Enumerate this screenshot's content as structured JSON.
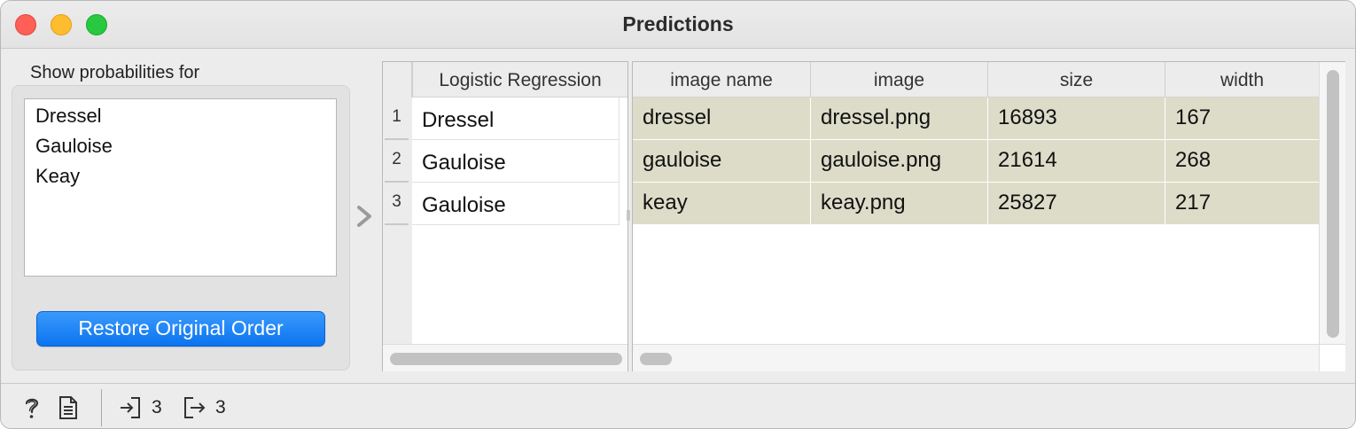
{
  "window": {
    "title": "Predictions"
  },
  "controls": {
    "show_probabilities_label": "Show probabilities for",
    "probability_classes": [
      "Dressel",
      "Gauloise",
      "Keay"
    ],
    "restore_button_label": "Restore Original Order"
  },
  "predictions": {
    "header": "Logistic Regression",
    "rows": [
      {
        "index": "1",
        "value": "Dressel"
      },
      {
        "index": "2",
        "value": "Gauloise"
      },
      {
        "index": "3",
        "value": "Gauloise"
      }
    ]
  },
  "data_table": {
    "columns": [
      "image name",
      "image",
      "size",
      "width"
    ],
    "rows": [
      [
        "dressel",
        "dressel.png",
        "16893",
        "167"
      ],
      [
        "gauloise",
        "gauloise.png",
        "21614",
        "268"
      ],
      [
        "keay",
        "keay.png",
        "25827",
        "217"
      ]
    ],
    "row_color": "#dcdcc9"
  },
  "statusbar": {
    "input_count": "3",
    "output_count": "3",
    "icons": [
      "help-icon",
      "report-icon",
      "input-icon",
      "output-icon"
    ]
  }
}
